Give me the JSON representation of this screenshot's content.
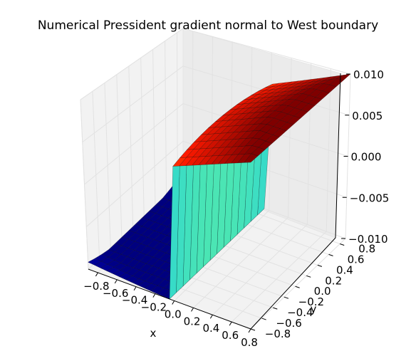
{
  "chart_data": {
    "type": "surface",
    "title": "Numerical Pressident gradient normal to West boundary",
    "xlabel": "x",
    "ylabel": "y",
    "zlabel": "",
    "xlim": [
      -0.9,
      0.8
    ],
    "ylim": [
      -0.8,
      0.9
    ],
    "zlim": [
      -0.01,
      0.01
    ],
    "xticks": [
      -0.8,
      -0.6,
      -0.4,
      -0.2,
      0.0,
      0.2,
      0.4,
      0.6,
      0.8
    ],
    "xtick_labels": [
      "−0.8",
      "−0.6",
      "−0.4",
      "−0.2",
      "0.0",
      "0.2",
      "0.4",
      "0.6",
      "0.8"
    ],
    "yticks": [
      -0.8,
      -0.6,
      -0.4,
      -0.2,
      0.0,
      0.2,
      0.4,
      0.6,
      0.8
    ],
    "ytick_labels": [
      "−0.8",
      "−0.6",
      "−0.4",
      "−0.2",
      "0.0",
      "0.2",
      "0.4",
      "0.6",
      "0.8"
    ],
    "zticks": [
      -0.01,
      -0.005,
      0.0,
      0.005,
      0.01
    ],
    "ztick_labels": [
      "−0.010",
      "−0.005",
      "0.000",
      "0.005",
      "0.010"
    ],
    "surface": {
      "x_range": [
        -0.9,
        0.8
      ],
      "y_range": [
        -0.8,
        0.9
      ],
      "z_min": -0.01,
      "z_max": 0.01,
      "colormap": [
        "#00007f",
        "#0000ff",
        "#00c0ff",
        "#7fff7f",
        "#ffcf00",
        "#ff1a00",
        "#7f0000"
      ]
    },
    "grid": true
  }
}
